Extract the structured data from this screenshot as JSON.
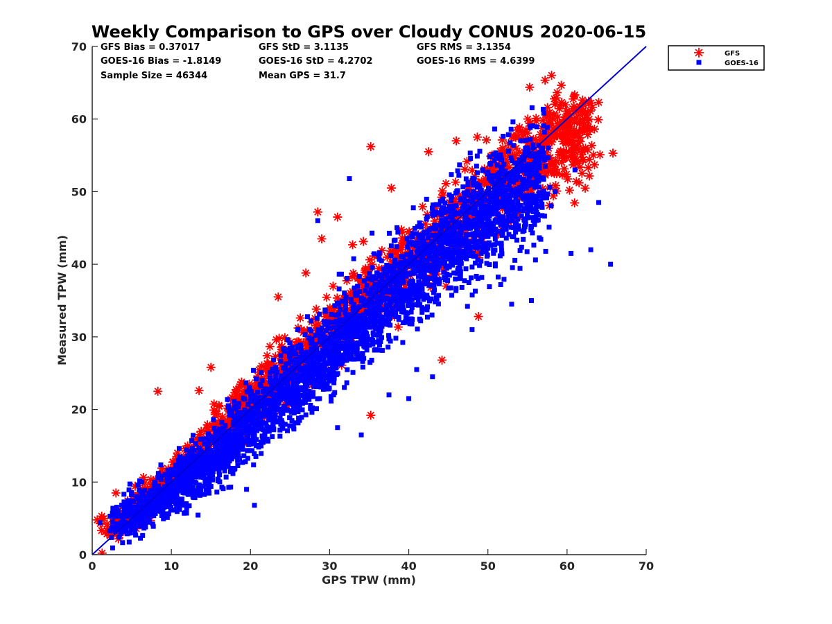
{
  "chart_data": {
    "type": "scatter",
    "title": "Weekly Comparison to GPS over Cloudy CONUS 2020-06-15",
    "xlabel": "GPS TPW (mm)",
    "ylabel": "Measured TPW (mm)",
    "xlim": [
      0,
      70
    ],
    "ylim": [
      0,
      70
    ],
    "xticks": [
      "0",
      "10",
      "20",
      "30",
      "40",
      "50",
      "60",
      "70"
    ],
    "yticks": [
      "0",
      "10",
      "20",
      "30",
      "40",
      "50",
      "60",
      "70"
    ],
    "grid": false,
    "legend_position": "outside-top-right",
    "stats": [
      [
        "GFS Bias = 0.37017",
        "GFS StD = 3.1135",
        "GFS RMS = 3.1354"
      ],
      [
        "GOES-16 Bias = -1.8149",
        "GOES-16 StD = 4.2702",
        "GOES-16 RMS = 4.6399"
      ],
      [
        "Sample Size = 46344",
        "Mean GPS = 31.7",
        ""
      ]
    ],
    "reference_line": {
      "from": [
        0,
        0
      ],
      "to": [
        70,
        70
      ],
      "color": "#0000cc"
    },
    "series": [
      {
        "name": "GFS",
        "marker": "asterisk",
        "color": "#ff0000",
        "center_points": [
          [
            2,
            3
          ],
          [
            6,
            7
          ],
          [
            10,
            11
          ],
          [
            15,
            16
          ],
          [
            20,
            21
          ],
          [
            25,
            26
          ],
          [
            30,
            31
          ],
          [
            35,
            36
          ],
          [
            40,
            40
          ],
          [
            45,
            45
          ],
          [
            50,
            50
          ],
          [
            55,
            54
          ],
          [
            60,
            58
          ],
          [
            63,
            59
          ]
        ],
        "spread": 2.2,
        "outliers": [
          [
            35.2,
            56.2
          ],
          [
            8.3,
            22.5
          ],
          [
            28.5,
            47.2
          ],
          [
            31.0,
            46.5
          ],
          [
            35.2,
            19.2
          ],
          [
            44.2,
            26.8
          ],
          [
            48.8,
            32.8
          ],
          [
            64.0,
            62.3
          ],
          [
            65.8,
            55.3
          ],
          [
            42.5,
            55.5
          ],
          [
            37.8,
            50.5
          ],
          [
            13.5,
            22.6
          ],
          [
            15.0,
            25.8
          ],
          [
            3.0,
            8.5
          ],
          [
            1.2,
            5.3
          ],
          [
            62.0,
            55.5
          ],
          [
            23.5,
            35.5
          ],
          [
            27.0,
            38.8
          ],
          [
            29.0,
            43.5
          ],
          [
            46.0,
            57.0
          ]
        ]
      },
      {
        "name": "GOES-16",
        "marker": "square",
        "color": "#0000ff",
        "center_points": [
          [
            3,
            4
          ],
          [
            6,
            6
          ],
          [
            10,
            9
          ],
          [
            15,
            13
          ],
          [
            20,
            18
          ],
          [
            25,
            23
          ],
          [
            30,
            28
          ],
          [
            35,
            33
          ],
          [
            40,
            38
          ],
          [
            45,
            43
          ],
          [
            50,
            47
          ],
          [
            55,
            51
          ],
          [
            57,
            52
          ]
        ],
        "spread": 2.8,
        "outliers": [
          [
            65.5,
            40.0
          ],
          [
            63.0,
            42.0
          ],
          [
            60.5,
            41.5
          ],
          [
            34.0,
            16.5
          ],
          [
            31.0,
            17.5
          ],
          [
            37.5,
            22.0
          ],
          [
            40.0,
            21.5
          ],
          [
            20.5,
            6.8
          ],
          [
            35.0,
            34.5
          ],
          [
            32.5,
            51.8
          ],
          [
            28.5,
            46.0
          ],
          [
            58.5,
            50.0
          ],
          [
            55.5,
            35.0
          ],
          [
            53.0,
            34.5
          ],
          [
            48.0,
            31.0
          ],
          [
            43.0,
            24.5
          ],
          [
            19.5,
            9.0
          ],
          [
            64.0,
            48.5
          ],
          [
            61.0,
            53.0
          ],
          [
            41.0,
            25.5
          ]
        ]
      }
    ]
  }
}
